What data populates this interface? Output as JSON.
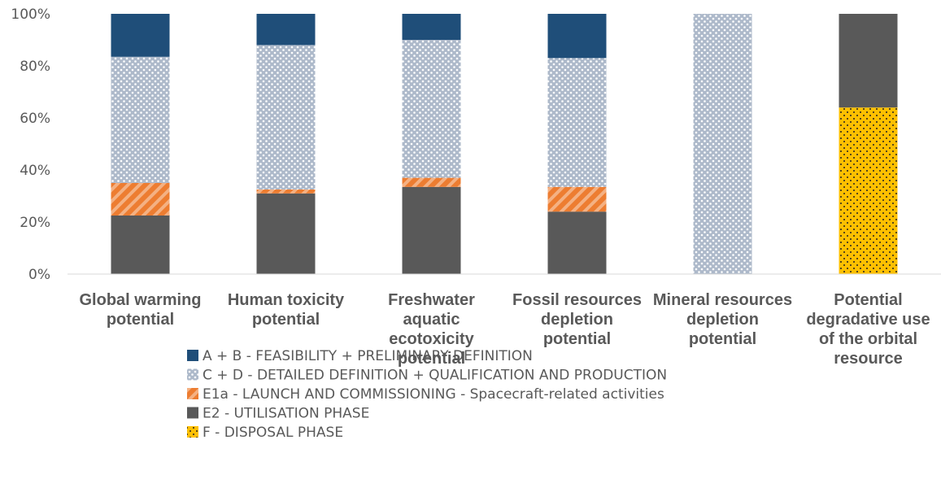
{
  "chart_data": {
    "type": "stacked_bar",
    "categories": [
      "Global warming potential",
      "Human toxicity potential",
      "Freshwater aquatic ecotoxicity potential",
      "Fossil resources depletion potential",
      "Mineral resources depletion potential",
      "Potential degradative use of the orbital resource"
    ],
    "series": [
      {
        "name": "A + B - FEASIBILITY + PRELIMINARY DEFINITION",
        "color": "#1f4e79",
        "pattern": "solid",
        "values": [
          16.5,
          12,
          10,
          17,
          0,
          0
        ]
      },
      {
        "name": "C + D - DETAILED DEFINITION + QUALIFICATION AND PRODUCTION",
        "color": "#adb9ca",
        "pattern": "dots",
        "values": [
          48.5,
          55.5,
          53,
          49.5,
          100,
          0
        ]
      },
      {
        "name": "E1a - LAUNCH AND COMMISSIONING - Spacecraft-related activities",
        "color": "#ed7d31",
        "pattern": "hatch",
        "values": [
          12.5,
          1.5,
          3.5,
          9.5,
          0,
          0
        ]
      },
      {
        "name": "E2 - UTILISATION PHASE",
        "color": "#595959",
        "pattern": "solid",
        "values": [
          22.5,
          31,
          33.5,
          24,
          0,
          36
        ]
      },
      {
        "name": "F - DISPOSAL PHASE",
        "color": "#ffc000",
        "pattern": "darkdots",
        "values": [
          0,
          0,
          0,
          0,
          0,
          64
        ]
      }
    ],
    "ylim": [
      0,
      100
    ],
    "yticks": [
      {
        "value": 0,
        "label": "0%"
      },
      {
        "value": 20,
        "label": "20%"
      },
      {
        "value": 40,
        "label": "40%"
      },
      {
        "value": 60,
        "label": "60%"
      },
      {
        "value": 80,
        "label": "80%"
      },
      {
        "value": 100,
        "label": "100%"
      }
    ],
    "grid": false,
    "legend": "bottom"
  }
}
